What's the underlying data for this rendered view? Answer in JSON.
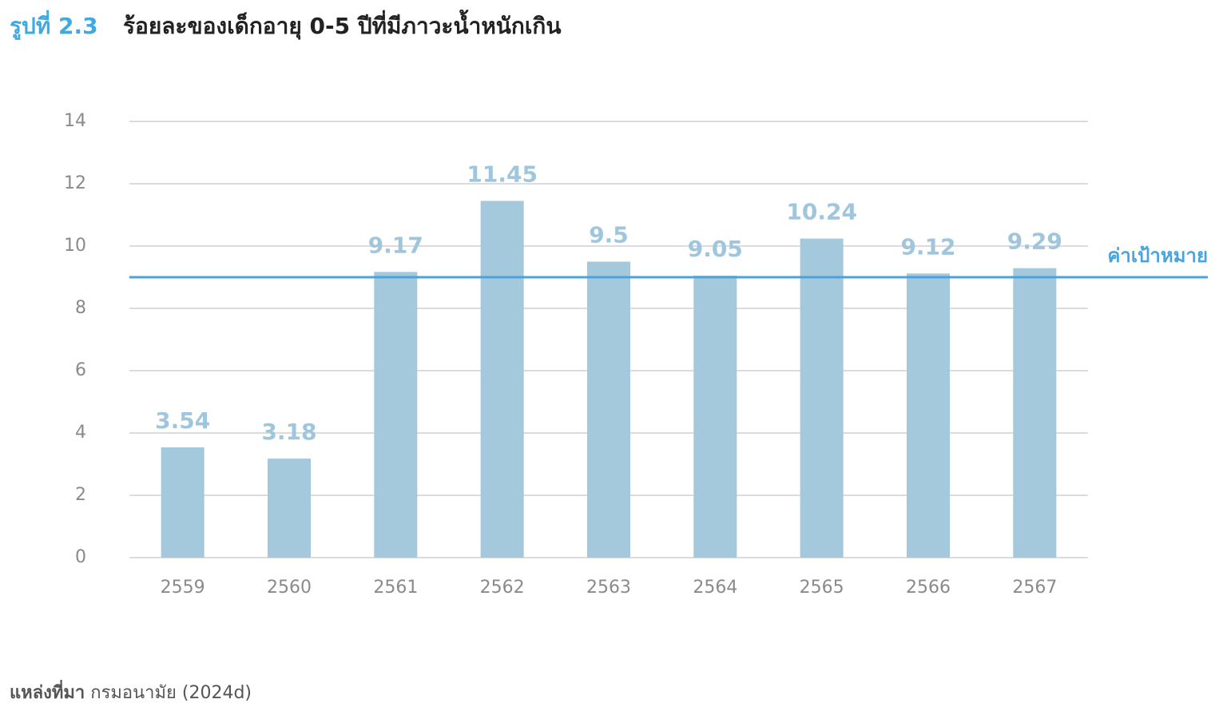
{
  "chart_data": {
    "type": "bar",
    "figure_number": "รูปที่ 2.3",
    "title": "ร้อยละของเด็กอายุ 0-5 ปีที่มีภาวะน้ำหนักเกิน",
    "categories": [
      "2559",
      "2560",
      "2561",
      "2562",
      "2563",
      "2564",
      "2565",
      "2566",
      "2567"
    ],
    "values": [
      3.54,
      3.18,
      9.17,
      11.45,
      9.5,
      9.05,
      10.24,
      9.12,
      9.29
    ],
    "color": "#a5c9dc",
    "label_color": "#9fc6dc",
    "ylim": [
      0,
      14
    ],
    "yticks": [
      0,
      2,
      4,
      6,
      8,
      10,
      12,
      14
    ],
    "grid": true,
    "target": {
      "value": 9,
      "label": "ค่าเป้าหมาย",
      "color": "#4aa3dc"
    },
    "source": {
      "label": "แหล่งที่มา",
      "text": "กรมอนามัย (2024d)"
    }
  }
}
